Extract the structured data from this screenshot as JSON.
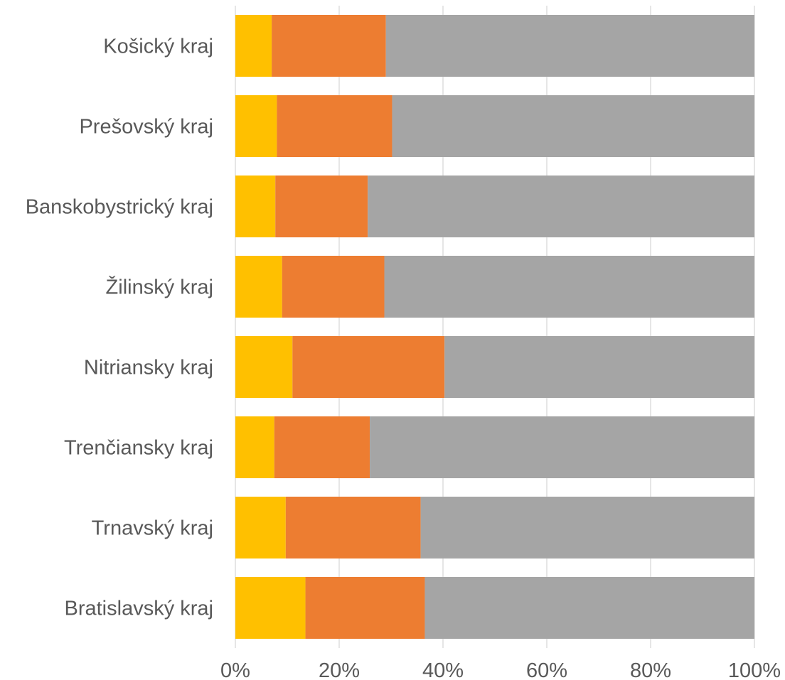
{
  "chart_data": {
    "type": "bar",
    "orientation": "horizontal",
    "stacking": "percent",
    "categories": [
      "Košický kraj",
      "Prešovský kraj",
      "Banskobystrický kraj",
      "Žilinský kraj",
      "Nitriansky kraj",
      "Trenčiansky kraj",
      "Trnavský kraj",
      "Bratislavský kraj"
    ],
    "series": [
      {
        "color": "#FFC000",
        "values": [
          7.0,
          8.0,
          7.7,
          9.0,
          11.0,
          7.5,
          9.7,
          13.5
        ]
      },
      {
        "color": "#ED7D31",
        "values": [
          22.0,
          22.2,
          17.8,
          19.7,
          29.3,
          18.4,
          26.0,
          23.0
        ]
      },
      {
        "color": "#A5A5A5",
        "values": [
          71.0,
          69.8,
          74.5,
          71.3,
          59.7,
          74.1,
          64.3,
          63.5
        ]
      }
    ],
    "xlim": [
      0,
      100
    ],
    "xticks": [
      "0%",
      "20%",
      "40%",
      "60%",
      "80%",
      "100%"
    ],
    "grid": true,
    "legend": false,
    "title": "",
    "xlabel": "",
    "ylabel": ""
  }
}
